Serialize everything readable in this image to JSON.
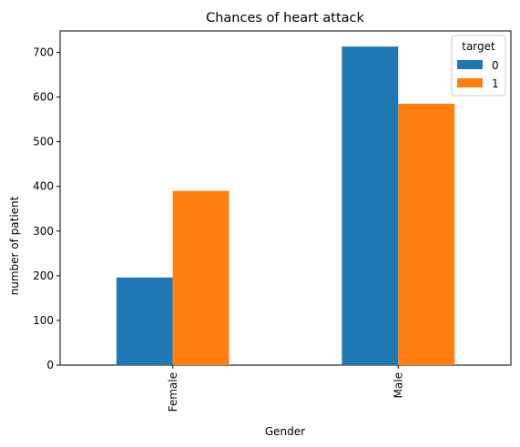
{
  "chart_data": {
    "type": "bar",
    "title": "Chances of heart attack",
    "xlabel": "Gender",
    "ylabel": "number of patient",
    "categories": [
      "Female",
      "Male"
    ],
    "series": [
      {
        "name": "0",
        "values": [
          196,
          713
        ],
        "color": "#1f77b4"
      },
      {
        "name": "1",
        "values": [
          390,
          585
        ],
        "color": "#ff7f0e"
      }
    ],
    "ylim": [
      0,
      748
    ],
    "yticks": [
      0,
      100,
      200,
      300,
      400,
      500,
      600,
      700
    ],
    "legend": {
      "title": "target",
      "placement": "top-right"
    },
    "grid": false
  }
}
